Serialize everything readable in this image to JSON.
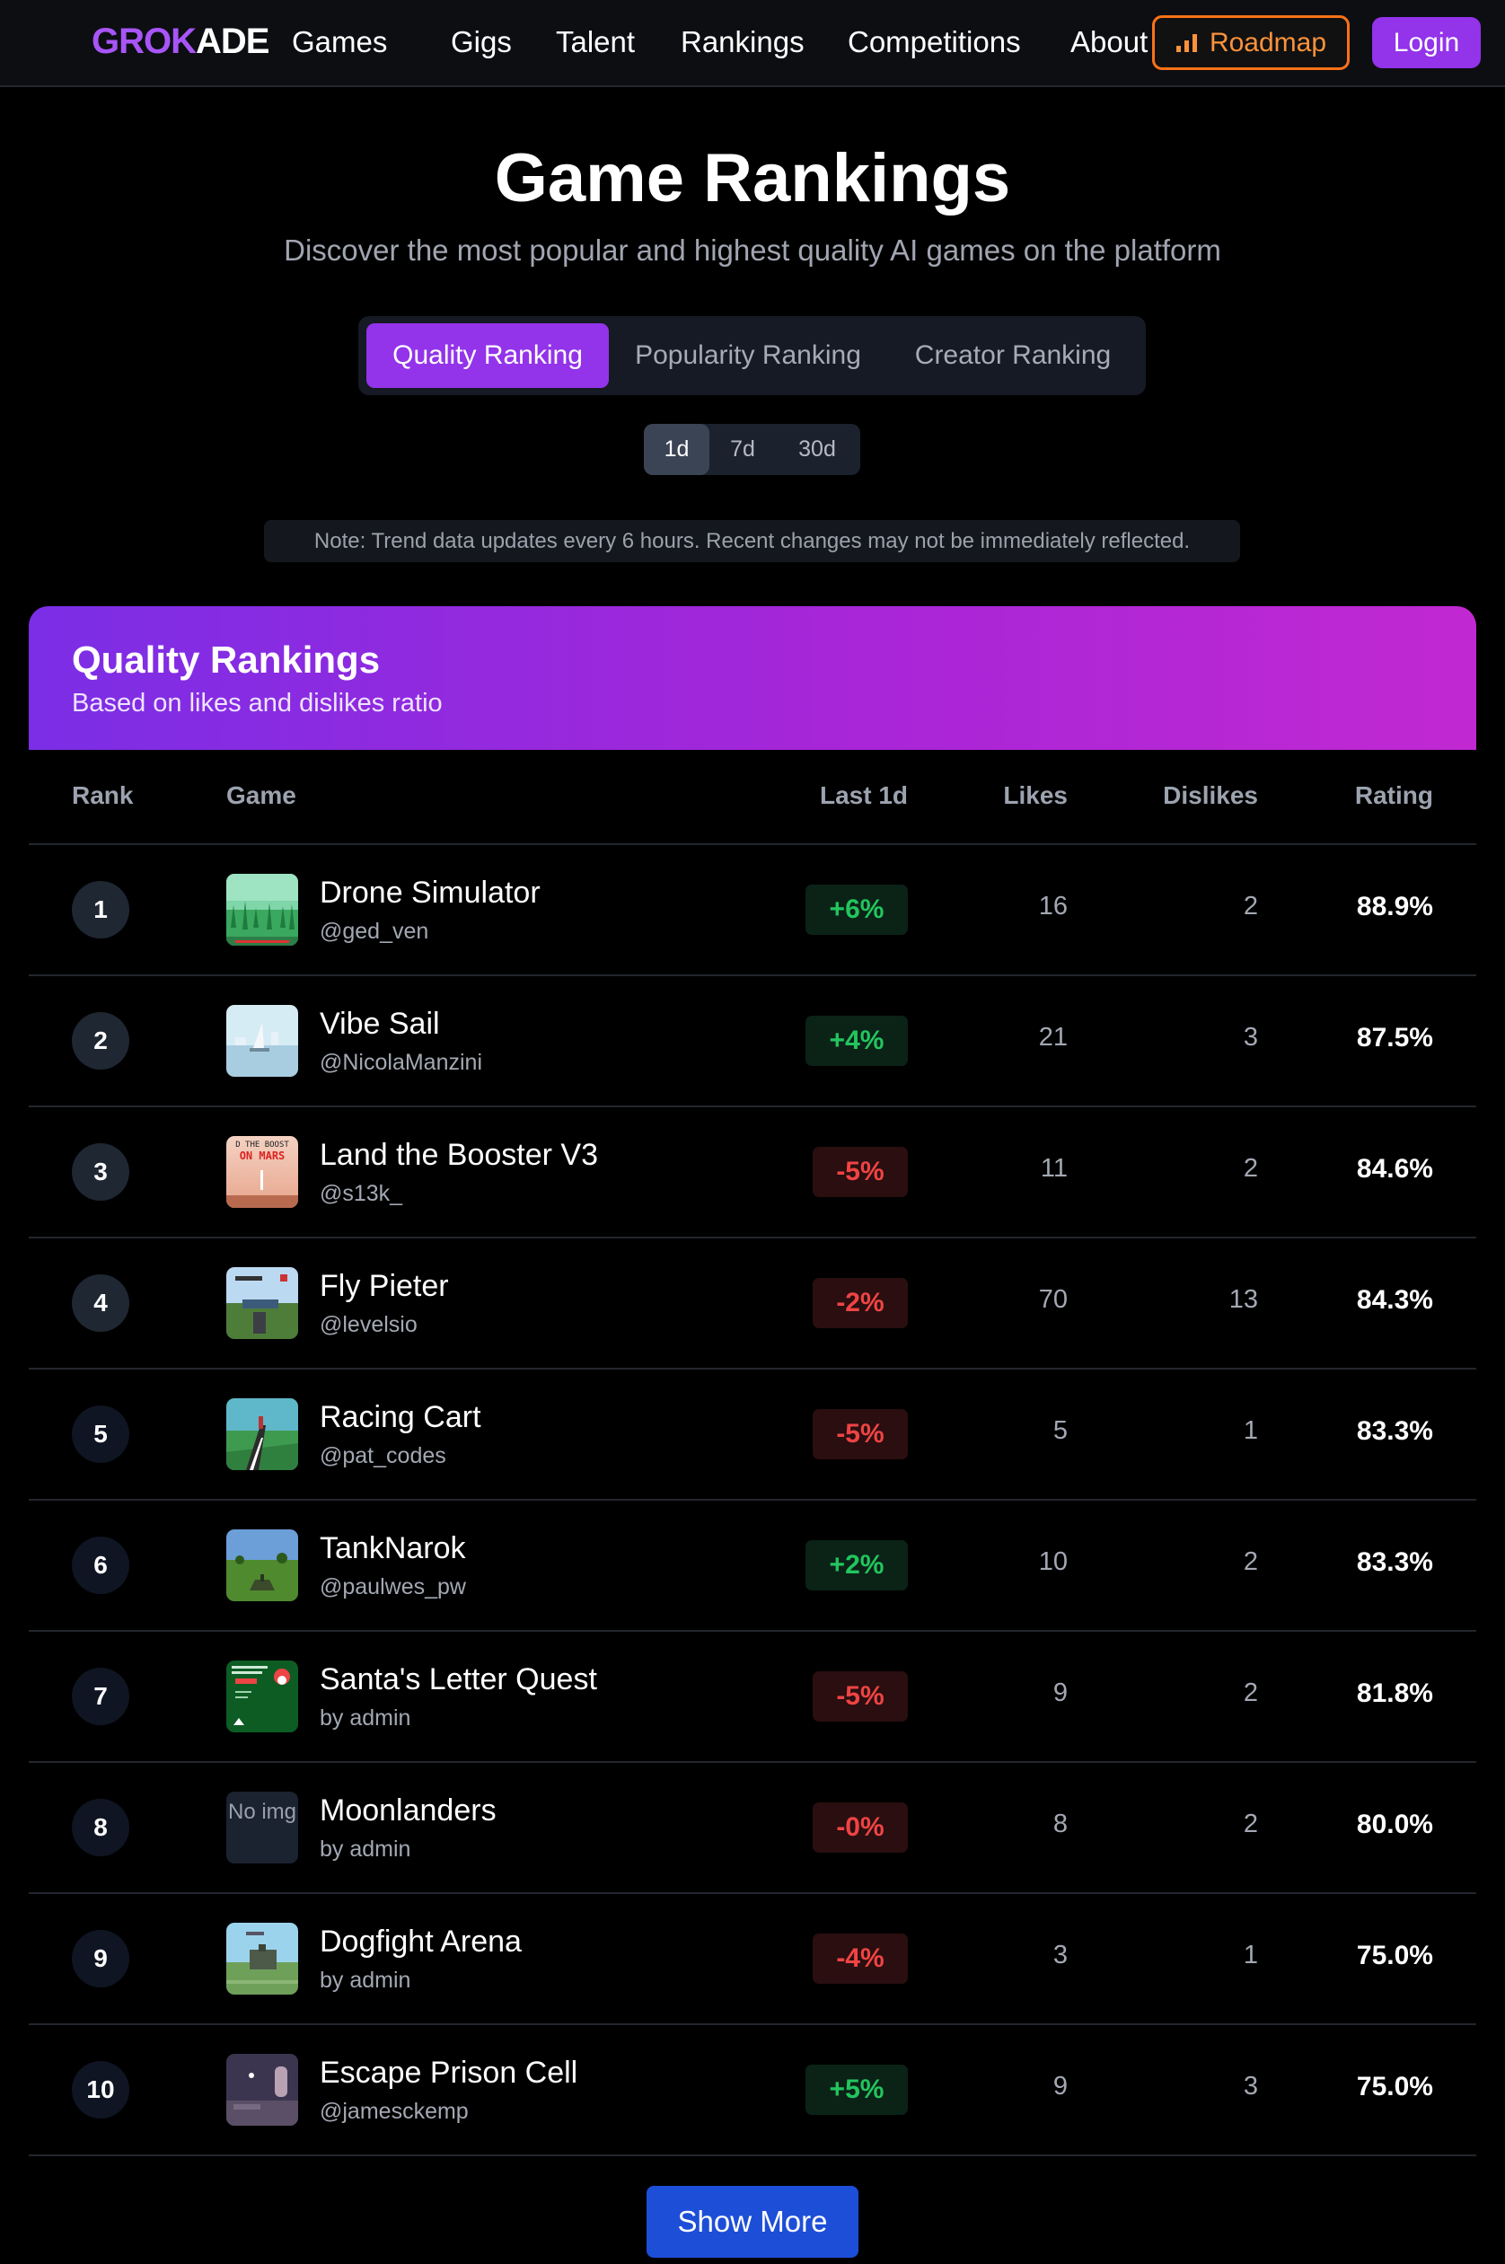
{
  "header": {
    "logo_part1": "GROK",
    "logo_part2": "ADE",
    "nav": [
      "Games",
      "Gigs",
      "Talent",
      "Rankings",
      "Competitions",
      "About"
    ],
    "roadmap_label": "Roadmap",
    "login_label": "Login"
  },
  "page": {
    "title": "Game Rankings",
    "subtitle": "Discover the most popular and highest quality AI games on the platform"
  },
  "tabs": [
    "Quality Ranking",
    "Popularity Ranking",
    "Creator Ranking"
  ],
  "periods": [
    "1d",
    "7d",
    "30d"
  ],
  "note": "Note: Trend data updates every 6 hours. Recent changes may not be immediately reflected.",
  "card": {
    "title": "Quality Rankings",
    "subtitle": "Based on likes and dislikes ratio"
  },
  "columns": {
    "rank": "Rank",
    "game": "Game",
    "trend": "Last 1d",
    "likes": "Likes",
    "dislikes": "Dislikes",
    "rating": "Rating"
  },
  "no_img_label": "No img",
  "rows": [
    {
      "rank": "1",
      "name": "Drone Simulator",
      "author": "@ged_ven",
      "trend": "+6%",
      "likes": "16",
      "dislikes": "2",
      "rating": "88.9%"
    },
    {
      "rank": "2",
      "name": "Vibe Sail",
      "author": "@NicolaManzini",
      "trend": "+4%",
      "likes": "21",
      "dislikes": "3",
      "rating": "87.5%"
    },
    {
      "rank": "3",
      "name": "Land the Booster V3",
      "author": "@s13k_",
      "trend": "-5%",
      "likes": "11",
      "dislikes": "2",
      "rating": "84.6%"
    },
    {
      "rank": "4",
      "name": "Fly Pieter",
      "author": "@levelsio",
      "trend": "-2%",
      "likes": "70",
      "dislikes": "13",
      "rating": "84.3%"
    },
    {
      "rank": "5",
      "name": "Racing Cart",
      "author": "@pat_codes",
      "trend": "-5%",
      "likes": "5",
      "dislikes": "1",
      "rating": "83.3%"
    },
    {
      "rank": "6",
      "name": "TankNarok",
      "author": "@paulwes_pw",
      "trend": "+2%",
      "likes": "10",
      "dislikes": "2",
      "rating": "83.3%"
    },
    {
      "rank": "7",
      "name": "Santa's Letter Quest",
      "author": "by admin",
      "trend": "-5%",
      "likes": "9",
      "dislikes": "2",
      "rating": "81.8%"
    },
    {
      "rank": "8",
      "name": "Moonlanders",
      "author": "by admin",
      "trend": "-0%",
      "likes": "8",
      "dislikes": "2",
      "rating": "80.0%"
    },
    {
      "rank": "9",
      "name": "Dogfight Arena",
      "author": "by admin",
      "trend": "-4%",
      "likes": "3",
      "dislikes": "1",
      "rating": "75.0%"
    },
    {
      "rank": "10",
      "name": "Escape Prison Cell",
      "author": "@jamesckemp",
      "trend": "+5%",
      "likes": "9",
      "dislikes": "3",
      "rating": "75.0%"
    }
  ],
  "thumb_text": {
    "booster_line1": "D THE BOOST",
    "booster_line2": "ON MARS"
  },
  "show_more_label": "Show More",
  "colors": {
    "accent": "#9333ea",
    "roadmap": "#f97316",
    "trend_up": "#22c55e",
    "trend_down": "#ef4444",
    "show_more": "#1d4ed8"
  }
}
